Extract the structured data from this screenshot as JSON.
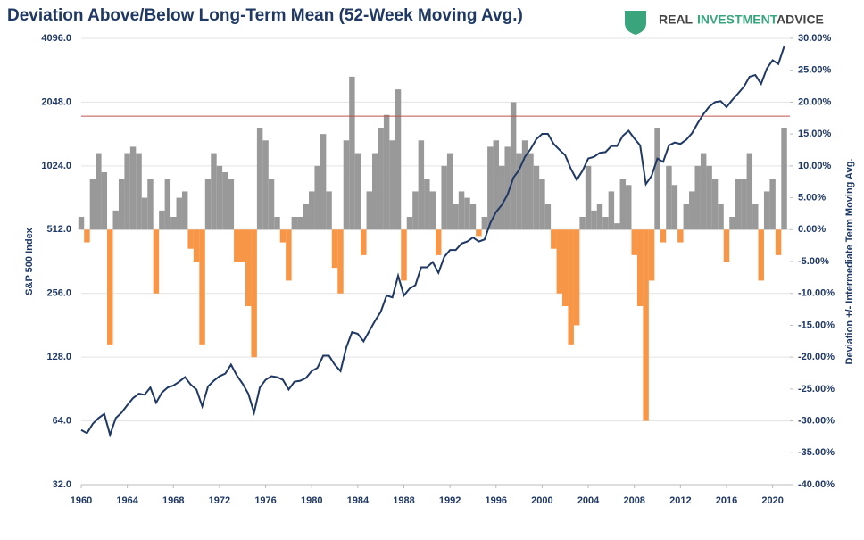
{
  "chart_data": {
    "type": "combo",
    "title": "Deviation Above/Below Long-Term Mean (52-Week Moving Avg.)",
    "logo": [
      "REAL",
      "INVESTMENT",
      "ADVICE"
    ],
    "y_label": "S&P 500 Index",
    "y2_label": "Deviation +/- Intermediate Term Moving Avg.",
    "x": [
      1960,
      1960.5,
      1961,
      1961.5,
      1962,
      1962.5,
      1963,
      1963.5,
      1964,
      1964.5,
      1965,
      1965.5,
      1966,
      1966.5,
      1967,
      1967.5,
      1968,
      1968.5,
      1969,
      1969.5,
      1970,
      1970.5,
      1971,
      1971.5,
      1972,
      1972.5,
      1973,
      1973.5,
      1974,
      1974.5,
      1975,
      1975.5,
      1976,
      1976.5,
      1977,
      1977.5,
      1978,
      1978.5,
      1979,
      1979.5,
      1980,
      1980.5,
      1981,
      1981.5,
      1982,
      1982.5,
      1983,
      1983.5,
      1984,
      1984.5,
      1985,
      1985.5,
      1986,
      1986.5,
      1987,
      1987.5,
      1988,
      1988.5,
      1989,
      1989.5,
      1990,
      1990.5,
      1991,
      1991.5,
      1992,
      1992.5,
      1993,
      1993.5,
      1994,
      1994.5,
      1995,
      1995.5,
      1996,
      1996.5,
      1997,
      1997.5,
      1998,
      1998.5,
      1999,
      1999.5,
      2000,
      2000.5,
      2001,
      2001.5,
      2002,
      2002.5,
      2003,
      2003.5,
      2004,
      2004.5,
      2005,
      2005.5,
      2006,
      2006.5,
      2007,
      2007.5,
      2008,
      2008.5,
      2009,
      2009.5,
      2010,
      2010.5,
      2011,
      2011.5,
      2012,
      2012.5,
      2013,
      2013.5,
      2014,
      2014.5,
      2015,
      2015.5,
      2016,
      2016.5,
      2017,
      2017.5,
      2018,
      2018.5,
      2019,
      2019.5,
      2020,
      2020.5,
      2021
    ],
    "series": [
      {
        "type": "bar",
        "axis": "y2",
        "color": "#999999",
        "negative_color": "#f79646",
        "values": [
          2,
          -2,
          8,
          12,
          9,
          -18,
          3,
          8,
          12,
          13,
          12,
          5,
          8,
          -10,
          3,
          8,
          2,
          5,
          6,
          -3,
          -5,
          -18,
          8,
          12,
          10,
          9,
          8,
          -5,
          -5,
          -12,
          -20,
          16,
          14,
          8,
          2,
          -2,
          -8,
          2,
          2,
          4,
          6,
          10,
          15,
          6,
          -6,
          -10,
          14,
          24,
          12,
          -4,
          6,
          12,
          16,
          18,
          14,
          22,
          -8,
          2,
          6,
          14,
          8,
          6,
          -4,
          10,
          12,
          4,
          6,
          5,
          4,
          -1,
          2,
          13,
          14,
          10,
          13,
          20,
          12,
          14,
          12,
          10,
          8,
          4,
          -3,
          -10,
          -12,
          -18,
          -15,
          2,
          10,
          3,
          4,
          2,
          6,
          1,
          8,
          7,
          -4,
          -12,
          -30,
          -8,
          16,
          -2,
          10,
          7,
          -2,
          4,
          6,
          10,
          12,
          10,
          8,
          4,
          -5,
          2,
          8,
          8,
          12,
          4,
          -8,
          6,
          8,
          -4,
          16
        ]
      },
      {
        "type": "line",
        "axis": "y",
        "color": "#1f3864",
        "values": [
          58,
          56,
          62,
          66,
          69,
          55,
          66,
          70,
          76,
          82,
          86,
          85,
          92,
          78,
          87,
          92,
          94,
          98,
          103,
          95,
          90,
          75,
          93,
          99,
          104,
          107,
          118,
          105,
          96,
          86,
          70,
          92,
          100,
          104,
          103,
          100,
          90,
          98,
          99,
          102,
          110,
          114,
          130,
          130,
          118,
          110,
          142,
          168,
          165,
          152,
          170,
          190,
          210,
          250,
          245,
          310,
          250,
          270,
          280,
          340,
          340,
          360,
          320,
          380,
          410,
          410,
          440,
          450,
          470,
          450,
          460,
          550,
          620,
          670,
          750,
          900,
          980,
          1130,
          1230,
          1370,
          1450,
          1450,
          1300,
          1220,
          1150,
          990,
          880,
          970,
          1110,
          1130,
          1180,
          1190,
          1270,
          1270,
          1420,
          1500,
          1380,
          1280,
          840,
          920,
          1110,
          1070,
          1280,
          1320,
          1300,
          1360,
          1460,
          1630,
          1800,
          1950,
          2050,
          2070,
          1940,
          2100,
          2250,
          2420,
          2700,
          2750,
          2500,
          2950,
          3230,
          3100,
          3750
        ]
      }
    ],
    "reference_line": {
      "value": 17.8,
      "axis": "y2",
      "color": "#c0504d"
    },
    "xlim": [
      1960,
      2021.5
    ],
    "xticks": [
      1960,
      1964,
      1968,
      1972,
      1976,
      1980,
      1984,
      1988,
      1992,
      1996,
      2000,
      2004,
      2008,
      2012,
      2016,
      2020
    ],
    "ylim": [
      32,
      4096
    ],
    "log_scale": true,
    "yticks": [
      {
        "value": 32,
        "label": "32.0"
      },
      {
        "value": 64,
        "label": "64.0"
      },
      {
        "value": 128,
        "label": "128.0"
      },
      {
        "value": 256,
        "label": "256.0"
      },
      {
        "value": 512,
        "label": "512.0"
      },
      {
        "value": 1024,
        "label": "1024.0"
      },
      {
        "value": 2048,
        "label": "2048.0"
      },
      {
        "value": 4096,
        "label": "4096.0"
      }
    ],
    "y2lim": [
      -40,
      30
    ],
    "y2ticks": [
      {
        "value": -40,
        "label": "-40.00%"
      },
      {
        "value": -35,
        "label": "-35.00%"
      },
      {
        "value": -30,
        "label": "-30.00%"
      },
      {
        "value": -25,
        "label": "-25.00%"
      },
      {
        "value": -20,
        "label": "-20.00%"
      },
      {
        "value": -15,
        "label": "-15.00%"
      },
      {
        "value": -10,
        "label": "-10.00%"
      },
      {
        "value": -5,
        "label": "-5.00%"
      },
      {
        "value": 0,
        "label": "0.00%"
      },
      {
        "value": 5,
        "label": "5.00%"
      },
      {
        "value": 10,
        "label": "10.00%"
      },
      {
        "value": 15,
        "label": "15.00%"
      },
      {
        "value": 20,
        "label": "20.00%"
      },
      {
        "value": 25,
        "label": "25.00%"
      },
      {
        "value": 30,
        "label": "30.00%"
      }
    ],
    "grid": true
  }
}
